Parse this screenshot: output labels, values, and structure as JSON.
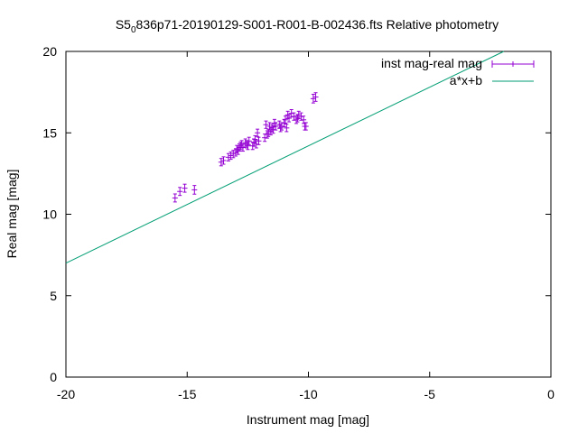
{
  "chart_data": {
    "type": "scatter",
    "title_prefix": "S5",
    "title_subscript": "0",
    "title_rest": "836p71-20190129-S001-R001-B-002436.fts Relative photometry",
    "xlabel": "Instrument mag [mag]",
    "ylabel": "Real mag [mag]",
    "xlim": [
      -20,
      0
    ],
    "ylim": [
      0,
      20
    ],
    "xticks": [
      -20,
      -15,
      -10,
      -5,
      0
    ],
    "yticks": [
      0,
      5,
      10,
      15,
      20
    ],
    "xtick_labels": [
      "-20",
      "-15",
      "-10",
      "-5",
      "0"
    ],
    "ytick_labels": [
      "0",
      "5",
      "10",
      "15",
      "20"
    ],
    "grid": false,
    "legend_position": "top-right",
    "series": [
      {
        "name": "inst mag-real mag",
        "kind": "points-with-errorbars",
        "color": "#9400d3",
        "x": [
          -15.5,
          -15.3,
          -15.1,
          -14.7,
          -13.6,
          -13.5,
          -13.3,
          -13.2,
          -13.1,
          -13.0,
          -12.95,
          -12.9,
          -12.85,
          -12.8,
          -12.75,
          -12.7,
          -12.6,
          -12.55,
          -12.5,
          -12.45,
          -12.3,
          -12.25,
          -12.2,
          -12.15,
          -12.1,
          -12.05,
          -11.8,
          -11.75,
          -11.7,
          -11.65,
          -11.6,
          -11.55,
          -11.5,
          -11.45,
          -11.4,
          -11.35,
          -11.2,
          -11.15,
          -11.1,
          -11.0,
          -10.95,
          -10.9,
          -10.85,
          -10.8,
          -10.7,
          -10.6,
          -10.5,
          -10.45,
          -10.4,
          -10.3,
          -10.2,
          -10.15,
          -10.1,
          -9.8,
          -9.7
        ],
        "y": [
          11.0,
          11.4,
          11.6,
          11.5,
          13.2,
          13.3,
          13.5,
          13.6,
          13.7,
          13.8,
          14.0,
          13.9,
          14.1,
          14.2,
          14.3,
          14.1,
          14.4,
          14.3,
          14.2,
          14.5,
          14.2,
          14.4,
          14.6,
          14.3,
          15.0,
          14.5,
          14.7,
          15.5,
          14.9,
          15.0,
          15.4,
          15.1,
          15.3,
          15.2,
          15.6,
          15.4,
          15.5,
          15.3,
          15.4,
          15.6,
          15.8,
          15.3,
          16.1,
          15.9,
          16.2,
          16.0,
          15.8,
          15.9,
          16.1,
          16.0,
          15.8,
          15.4,
          15.4,
          17.1,
          17.2
        ],
        "yerr": [
          0.08,
          0.08,
          0.08,
          0.1,
          0.06,
          0.06,
          0.06,
          0.06,
          0.06,
          0.06,
          0.06,
          0.06,
          0.06,
          0.06,
          0.06,
          0.06,
          0.06,
          0.06,
          0.06,
          0.06,
          0.06,
          0.06,
          0.06,
          0.06,
          0.06,
          0.06,
          0.06,
          0.06,
          0.06,
          0.06,
          0.06,
          0.06,
          0.06,
          0.06,
          0.06,
          0.06,
          0.06,
          0.06,
          0.06,
          0.06,
          0.06,
          0.06,
          0.06,
          0.06,
          0.06,
          0.06,
          0.06,
          0.06,
          0.06,
          0.06,
          0.06,
          0.06,
          0.06,
          0.1,
          0.1
        ]
      },
      {
        "name": "a*x+b",
        "kind": "line",
        "color": "#009e73",
        "slope": 0.72,
        "intercept": 21.4
      }
    ]
  }
}
